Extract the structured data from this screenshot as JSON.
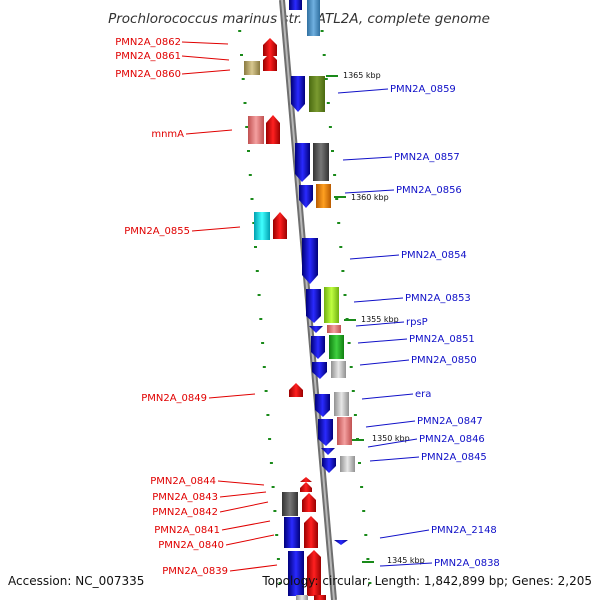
{
  "title": "Prochlorococcus marinus str. NATL2A, complete genome",
  "footer": {
    "accession": "Accession: NC_007335",
    "topology": "Topology: circular; Length: 1,842,899 bp; Genes: 2,205"
  },
  "colors": {
    "backbone": "#8a8a8a",
    "tick": "#1a8a1a",
    "label_left": "#e00000",
    "label_right": "#1010c8",
    "plus_strand": "#ff0000",
    "minus_strand": "#1010ff"
  },
  "left_labels": [
    {
      "text": "PMN2A_0862",
      "kind": "left-gene"
    },
    {
      "text": "PMN2A_0861",
      "kind": "left-gene"
    },
    {
      "text": "PMN2A_0860",
      "kind": "left-gene"
    },
    {
      "text": "mnmA",
      "kind": "left-gene"
    },
    {
      "text": "PMN2A_0855",
      "kind": "left-gene"
    },
    {
      "text": "PMN2A_0849",
      "kind": "left-gene"
    },
    {
      "text": "PMN2A_0844",
      "kind": "left-gene"
    },
    {
      "text": "PMN2A_0843",
      "kind": "left-gene"
    },
    {
      "text": "PMN2A_0842",
      "kind": "left-gene"
    },
    {
      "text": "PMN2A_0841",
      "kind": "left-gene"
    },
    {
      "text": "PMN2A_0840",
      "kind": "left-gene"
    },
    {
      "text": "PMN2A_0839",
      "kind": "left-gene"
    }
  ],
  "right_labels": [
    {
      "text": "PMN2A_0859",
      "kind": "right-gene"
    },
    {
      "text": "PMN2A_0857",
      "kind": "right-gene"
    },
    {
      "text": "PMN2A_0856",
      "kind": "right-gene"
    },
    {
      "text": "PMN2A_0854",
      "kind": "right-gene"
    },
    {
      "text": "PMN2A_0853",
      "kind": "right-gene"
    },
    {
      "text": "rpsP",
      "kind": "right-gene"
    },
    {
      "text": "PMN2A_0851",
      "kind": "right-gene"
    },
    {
      "text": "PMN2A_0850",
      "kind": "right-gene"
    },
    {
      "text": "era",
      "kind": "right-gene"
    },
    {
      "text": "PMN2A_0847",
      "kind": "right-gene"
    },
    {
      "text": "PMN2A_0846",
      "kind": "right-gene"
    },
    {
      "text": "PMN2A_0845",
      "kind": "right-gene"
    },
    {
      "text": "PMN2A_2148",
      "kind": "right-gene"
    },
    {
      "text": "PMN2A_0838",
      "kind": "right-gene"
    }
  ],
  "scale_marks": [
    {
      "text": "1365 kbp"
    },
    {
      "text": "1360 kbp"
    },
    {
      "text": "1355 kbp"
    },
    {
      "text": "1350 kbp"
    },
    {
      "text": "1345 kbp"
    }
  ]
}
